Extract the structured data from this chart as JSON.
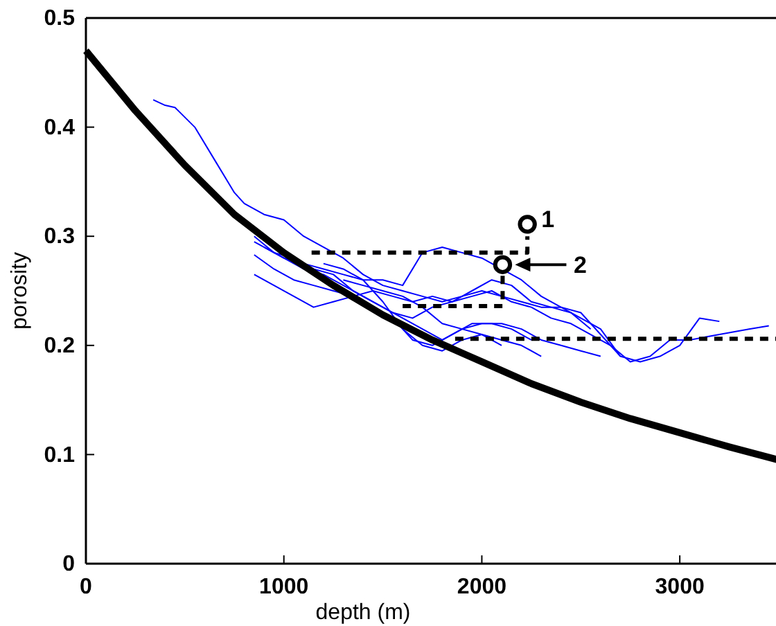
{
  "chart_data": {
    "type": "line",
    "xlabel": "depth (m)",
    "ylabel": "porosity",
    "xlim": [
      0,
      3500
    ],
    "ylim": [
      0,
      0.5
    ],
    "xticks": [
      0,
      1000,
      2000,
      3000
    ],
    "yticks": [
      0,
      0.1,
      0.2,
      0.3,
      0.4,
      0.5
    ],
    "grid": false,
    "series": [
      {
        "color": "#0000ff",
        "x": [
          340,
          400,
          450,
          550,
          650,
          750,
          800,
          900,
          1000,
          1100,
          1200,
          1300,
          1400,
          1500,
          1600,
          1700,
          1800,
          1900,
          2000,
          2100,
          2200,
          2300,
          2400,
          2500,
          2600,
          2700,
          2800,
          2900,
          3000,
          3100,
          3200
        ],
        "values": [
          0.425,
          0.42,
          0.418,
          0.4,
          0.37,
          0.34,
          0.33,
          0.32,
          0.315,
          0.3,
          0.29,
          0.28,
          0.265,
          0.255,
          0.25,
          0.245,
          0.24,
          0.245,
          0.25,
          0.245,
          0.24,
          0.235,
          0.235,
          0.23,
          0.21,
          0.19,
          0.185,
          0.19,
          0.2,
          0.225,
          0.222
        ]
      },
      {
        "color": "#0000ff",
        "x": [
          850,
          950,
          1050,
          1150,
          1250,
          1350,
          1450,
          1550,
          1650,
          1750,
          1850,
          1950,
          2050,
          2150,
          2250,
          2350,
          2450,
          2550,
          2650,
          2750,
          2850,
          2950,
          3050,
          3200,
          3350,
          3450
        ],
        "values": [
          0.3,
          0.285,
          0.28,
          0.27,
          0.265,
          0.25,
          0.24,
          0.23,
          0.225,
          0.235,
          0.24,
          0.245,
          0.25,
          0.24,
          0.235,
          0.225,
          0.22,
          0.21,
          0.2,
          0.185,
          0.19,
          0.205,
          0.205,
          0.21,
          0.215,
          0.218
        ]
      },
      {
        "color": "#0000ff",
        "x": [
          850,
          1000,
          1100,
          1200,
          1300,
          1400,
          1500,
          1600,
          1700,
          1800,
          1900,
          2000,
          2100,
          2200,
          2300,
          2400,
          2500,
          2600,
          2700
        ],
        "values": [
          0.295,
          0.28,
          0.275,
          0.27,
          0.265,
          0.26,
          0.26,
          0.255,
          0.285,
          0.29,
          0.285,
          0.28,
          0.27,
          0.26,
          0.245,
          0.235,
          0.225,
          0.215,
          0.19
        ]
      },
      {
        "color": "#0000ff",
        "x": [
          850,
          950,
          1050,
          1150,
          1250,
          1350,
          1450,
          1550,
          1650,
          1750,
          1850,
          1950,
          2050,
          2150,
          2250,
          2350,
          2450,
          2550
        ],
        "values": [
          0.283,
          0.27,
          0.26,
          0.255,
          0.25,
          0.245,
          0.25,
          0.245,
          0.24,
          0.245,
          0.24,
          0.25,
          0.26,
          0.255,
          0.24,
          0.235,
          0.23,
          0.215
        ]
      },
      {
        "color": "#0000ff",
        "x": [
          900,
          1000,
          1100,
          1200,
          1300,
          1400,
          1500,
          1600,
          1700,
          1800,
          1900,
          2000,
          2100,
          2200,
          2300,
          2400,
          2500,
          2600
        ],
        "values": [
          0.29,
          0.28,
          0.27,
          0.265,
          0.255,
          0.245,
          0.235,
          0.225,
          0.215,
          0.205,
          0.215,
          0.22,
          0.22,
          0.215,
          0.205,
          0.2,
          0.195,
          0.19
        ]
      },
      {
        "color": "#0000ff",
        "x": [
          850,
          950,
          1050,
          1150,
          1250,
          1350,
          1450,
          1550,
          1650,
          1750,
          1850,
          1950,
          2050,
          2150,
          2250
        ],
        "values": [
          0.265,
          0.255,
          0.245,
          0.235,
          0.24,
          0.245,
          0.235,
          0.225,
          0.205,
          0.2,
          0.21,
          0.22,
          0.22,
          0.215,
          0.205
        ]
      },
      {
        "color": "#0000ff",
        "x": [
          1300,
          1400,
          1500,
          1600,
          1700,
          1800,
          1900,
          2000,
          2100,
          2200,
          2300
        ],
        "values": [
          0.26,
          0.255,
          0.25,
          0.245,
          0.235,
          0.22,
          0.215,
          0.21,
          0.205,
          0.2,
          0.19
        ]
      },
      {
        "color": "#0000ff",
        "x": [
          1200,
          1300,
          1400,
          1500,
          1600,
          1700,
          1800,
          1900,
          2000,
          2100
        ],
        "values": [
          0.275,
          0.27,
          0.26,
          0.24,
          0.215,
          0.2,
          0.195,
          0.205,
          0.21,
          0.2
        ]
      },
      {
        "color": "#000000",
        "x": [
          0,
          250,
          500,
          750,
          1000,
          1250,
          1500,
          1750,
          2000,
          2250,
          2500,
          2750,
          3000,
          3250,
          3500
        ],
        "values": [
          0.47,
          0.415,
          0.365,
          0.32,
          0.285,
          0.255,
          0.228,
          0.205,
          0.185,
          0.165,
          0.148,
          0.133,
          0.12,
          0.107,
          0.095
        ]
      },
      {
        "color": "#000000",
        "line_style": "dashed",
        "x": [
          1140,
          2230,
          2230
        ],
        "values": [
          0.285,
          0.285,
          0.3
        ]
      },
      {
        "color": "#000000",
        "line_style": "dashed",
        "x": [
          1600,
          2105,
          2105
        ],
        "values": [
          0.236,
          0.236,
          0.265
        ]
      },
      {
        "color": "#000000",
        "line_style": "dashed",
        "x": [
          1865,
          3500
        ],
        "values": [
          0.206,
          0.206
        ]
      },
      {
        "type": "scatter",
        "marker": "circle",
        "color": "#000000",
        "x": [
          2230,
          2105
        ],
        "values": [
          0.311,
          0.274
        ]
      }
    ],
    "annotations": [
      {
        "text": "1",
        "x": 2230,
        "y": 0.311
      },
      "2"
    ]
  }
}
